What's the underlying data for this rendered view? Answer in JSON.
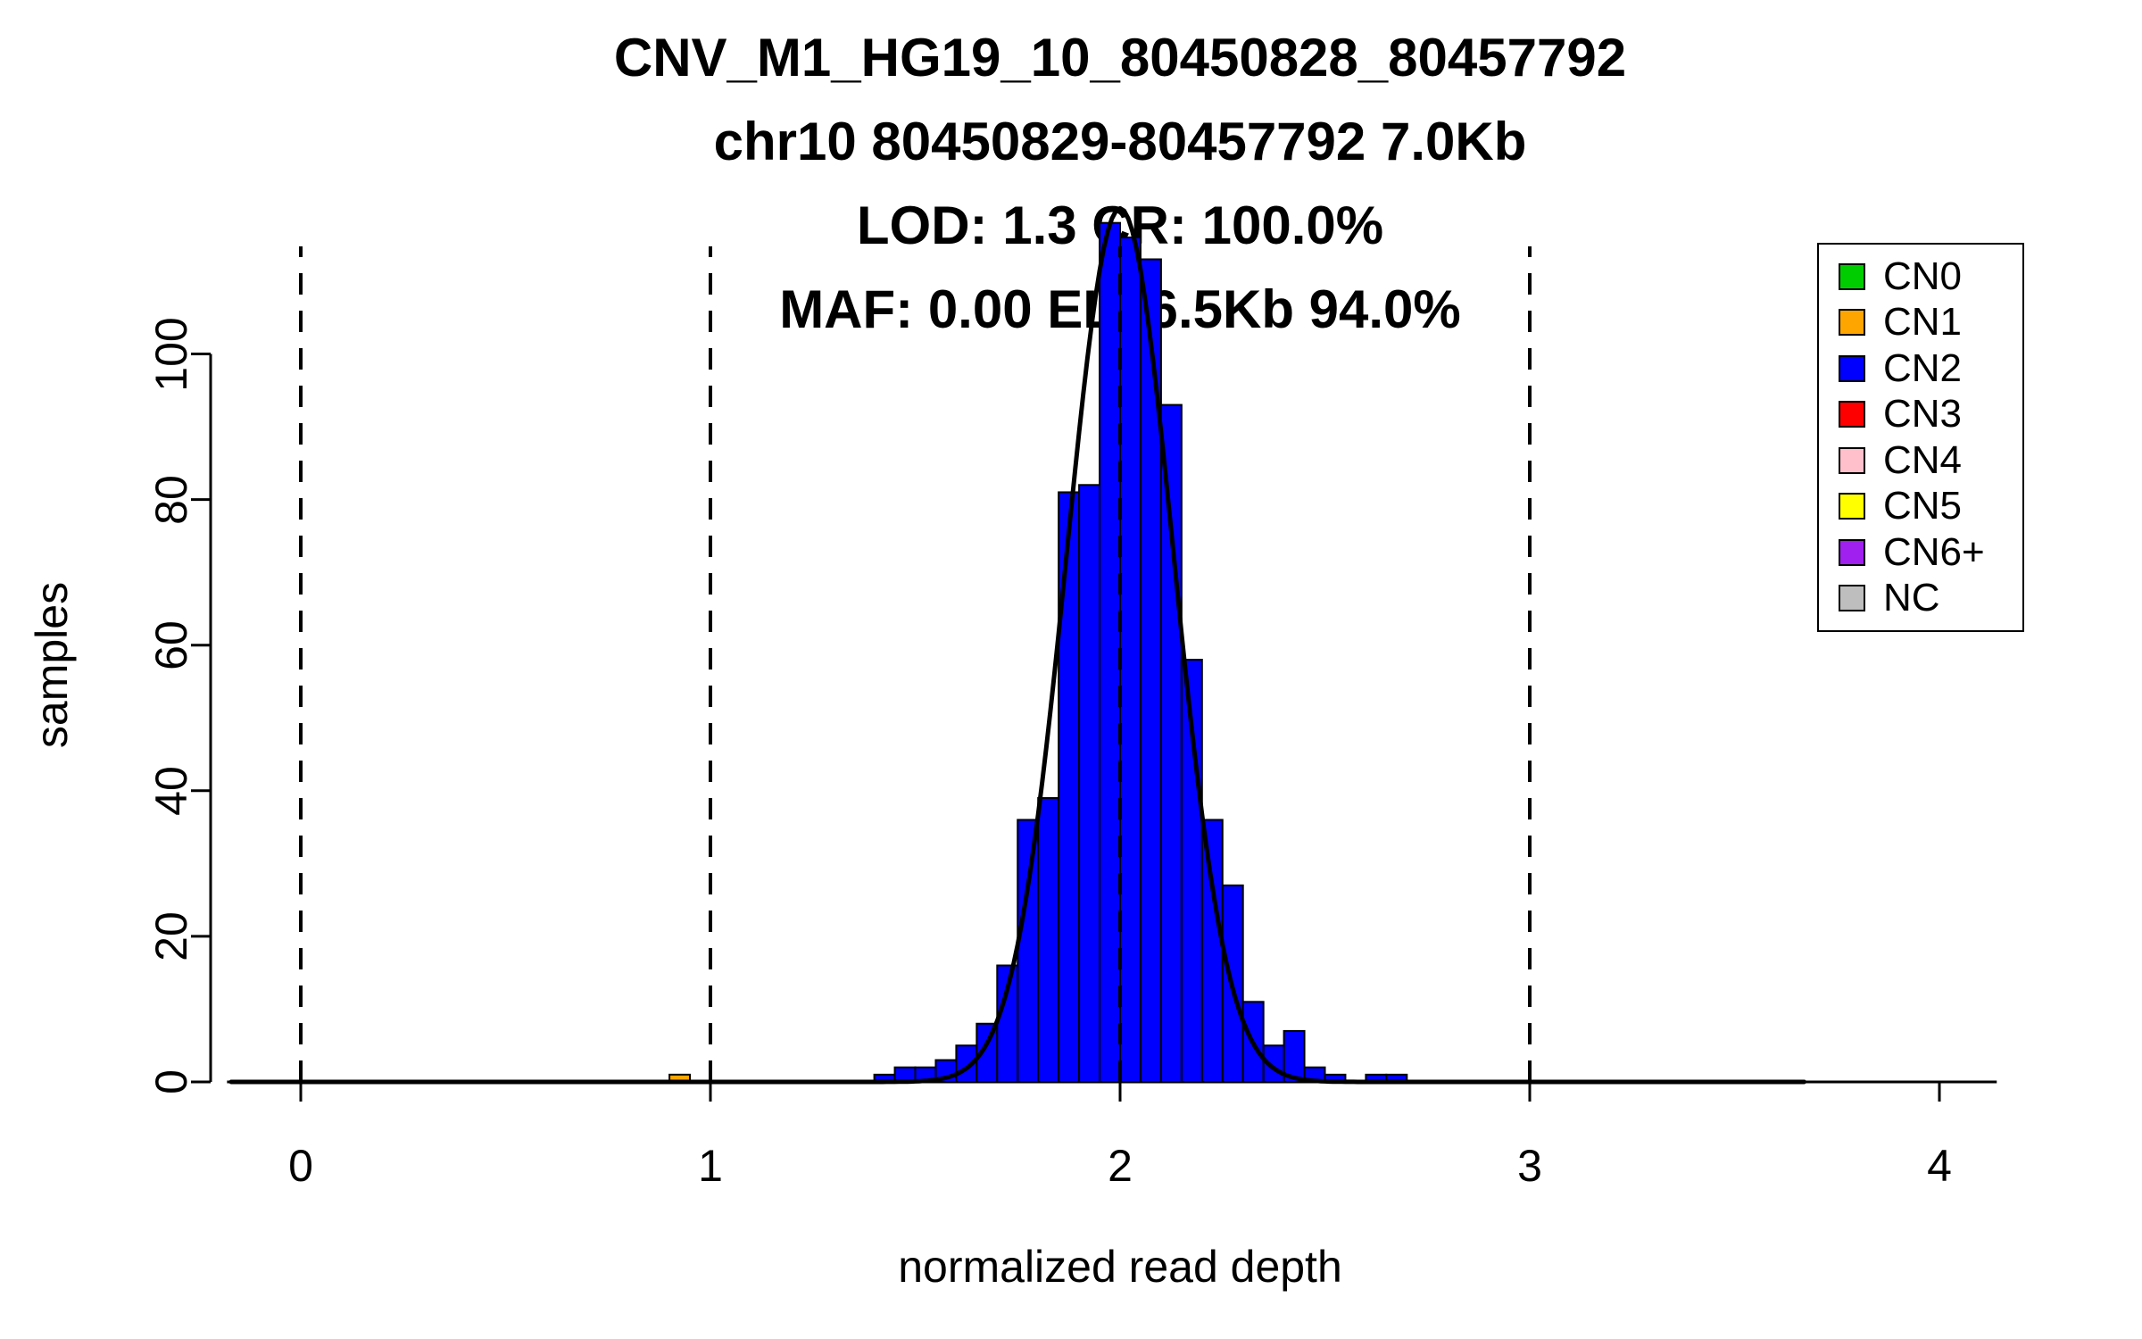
{
  "title": {
    "lines": [
      "CNV_M1_HG19_10_80450828_80457792",
      "chr10 80450829-80457792 7.0Kb",
      "LOD: 1.3 CR: 100.0%",
      "MAF: 0.00 EL: 6.5Kb 94.0%"
    ]
  },
  "axes": {
    "x_label": "normalized read depth",
    "y_label": "samples",
    "x_ticks": [
      0,
      1,
      2,
      3,
      4
    ],
    "y_ticks": [
      0,
      20,
      40,
      60,
      80,
      100
    ],
    "x_range": [
      -0.18,
      4.14
    ],
    "y_range": [
      0,
      118
    ]
  },
  "legend": {
    "entries": [
      {
        "label": "CN0",
        "color": "#00CD00"
      },
      {
        "label": "CN1",
        "color": "#FFA500"
      },
      {
        "label": "CN2",
        "color": "#0000FF"
      },
      {
        "label": "CN3",
        "color": "#FF0000"
      },
      {
        "label": "CN4",
        "color": "#FFC0CB"
      },
      {
        "label": "CN5",
        "color": "#FFFF00"
      },
      {
        "label": "CN6+",
        "color": "#A020F0"
      },
      {
        "label": "NC",
        "color": "#BEBEBE"
      }
    ]
  },
  "chart_data": {
    "type": "bar",
    "subtype": "histogram",
    "title": "CNV_M1_HG19_10_80450828_80457792",
    "xlabel": "normalized read depth",
    "ylabel": "samples",
    "xlim": [
      -0.18,
      4.14
    ],
    "ylim": [
      0,
      118
    ],
    "grid": false,
    "legend_position": "top-right",
    "bin_width": 0.05,
    "series": [
      {
        "name": "CN2",
        "color": "#0000FF",
        "bins_start": 1.4,
        "counts": [
          1,
          2,
          2,
          3,
          5,
          8,
          16,
          36,
          39,
          81,
          82,
          118,
          116,
          113,
          93,
          58,
          36,
          27,
          11,
          5,
          7,
          2,
          1,
          0,
          1,
          1
        ]
      },
      {
        "name": "CN1",
        "color": "#FFA500",
        "bins_start": 0.9,
        "counts": [
          1
        ]
      }
    ],
    "fit_curve": {
      "type": "gaussian",
      "mean": 2.0,
      "sd": 0.13,
      "amplitude": 120,
      "color": "#000000"
    },
    "reference_lines_x": [
      0,
      1,
      2,
      3
    ],
    "baseline_extent": [
      -0.17,
      3.67
    ]
  }
}
